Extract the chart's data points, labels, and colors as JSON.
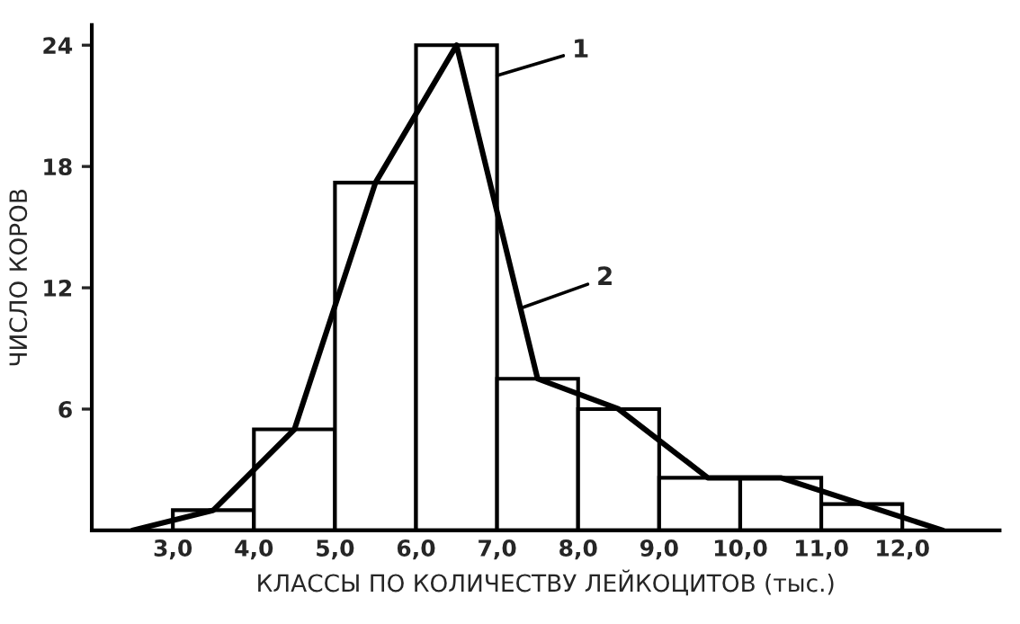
{
  "chart_data": {
    "type": "histogram",
    "xlabel": "КЛАССЫ ПО КОЛИЧЕСТВУ ЛЕЙКОЦИТОВ (тыс.)",
    "ylabel": "ЧИСЛО КОРОВ",
    "series": [
      {
        "color": "#ffffff",
        "bins": [
          3,
          4,
          5,
          6,
          7,
          8,
          9,
          10,
          11,
          12
        ],
        "values": [
          1,
          5,
          17.2,
          24,
          7.5,
          6,
          2.6,
          2.6,
          1.3
        ]
      },
      {
        "type": "line",
        "color": "#000000",
        "x": [
          2.5,
          3.5,
          4.5,
          5.5,
          6.5,
          7.5,
          8.5,
          9.6,
          10.5,
          11.5,
          12.5
        ],
        "values": [
          0,
          1,
          5,
          17.2,
          24,
          7.5,
          6,
          2.6,
          2.6,
          1.3,
          0
        ]
      }
    ],
    "annotations": [
      {
        "text": "1",
        "x": 7.0,
        "y": 22.5
      },
      {
        "text": "2",
        "x": 7.3,
        "y": 11
      }
    ],
    "xlim": [
      2.0,
      13.2
    ],
    "ylim": [
      0,
      25
    ],
    "xticks": [
      {
        "value": 3,
        "label": "3,0"
      },
      {
        "value": 4,
        "label": "4,0"
      },
      {
        "value": 5,
        "label": "5,0"
      },
      {
        "value": 6,
        "label": "6,0"
      },
      {
        "value": 7,
        "label": "7,0"
      },
      {
        "value": 8,
        "label": "8,0"
      },
      {
        "value": 9,
        "label": "9,0"
      },
      {
        "value": 10,
        "label": "10,0"
      },
      {
        "value": 11,
        "label": "11,0"
      },
      {
        "value": 12,
        "label": "12,0"
      }
    ],
    "yticks": [
      6,
      12,
      18,
      24
    ],
    "grid": false,
    "legend": false
  }
}
